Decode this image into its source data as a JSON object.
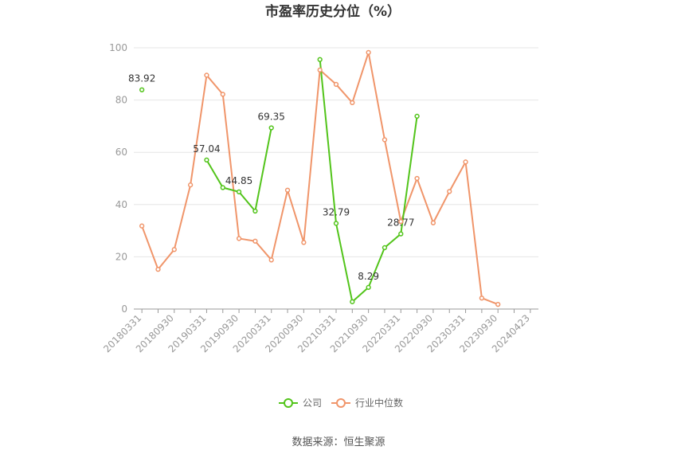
{
  "chart_data": {
    "type": "line",
    "title": "市盈率历史分位（%）",
    "source": "数据来源：恒生聚源",
    "ylim": [
      0,
      100
    ],
    "yticks": [
      0,
      20,
      40,
      60,
      80,
      100
    ],
    "x_tick_labels": [
      "20180331",
      "20180930",
      "20190331",
      "20190930",
      "20200331",
      "20200930",
      "20210331",
      "20210930",
      "20220331",
      "20220930",
      "20230331",
      "20230930",
      "20240423"
    ],
    "x": [
      "20180331",
      "20180630",
      "20180930",
      "20181231",
      "20190331",
      "20190630",
      "20190930",
      "20191231",
      "20200331",
      "20200630",
      "20200930",
      "20201231",
      "20210331",
      "20210630",
      "20210930",
      "20211231",
      "20220331",
      "20220630",
      "20220930",
      "20221231",
      "20230331",
      "20230630",
      "20230930",
      "20231231",
      "20240423"
    ],
    "series": [
      {
        "name": "公司",
        "color": "#52c41a",
        "values": [
          83.92,
          null,
          null,
          null,
          57.04,
          46.5,
          44.85,
          37.5,
          69.35,
          null,
          null,
          95.5,
          32.79,
          2.8,
          8.29,
          23.5,
          28.77,
          73.8,
          null,
          null,
          null,
          null,
          null,
          null,
          null
        ],
        "labels": [
          {
            "index": 0,
            "text": "83.92"
          },
          {
            "index": 4,
            "text": "57.04"
          },
          {
            "index": 6,
            "text": "44.85"
          },
          {
            "index": 8,
            "text": "69.35"
          },
          {
            "index": 12,
            "text": "32.79"
          },
          {
            "index": 14,
            "text": "8.29"
          },
          {
            "index": 16,
            "text": "28.77"
          }
        ]
      },
      {
        "name": "行业中位数",
        "color": "#f0956a",
        "values": [
          31.8,
          15.2,
          22.8,
          47.5,
          89.5,
          82.2,
          27.0,
          26.0,
          18.8,
          45.5,
          25.5,
          91.5,
          86.0,
          79.0,
          98.2,
          64.8,
          33.5,
          50.0,
          33.0,
          45.0,
          56.3,
          4.2,
          1.8,
          null,
          null
        ]
      }
    ],
    "legend_position": "bottom-center"
  }
}
